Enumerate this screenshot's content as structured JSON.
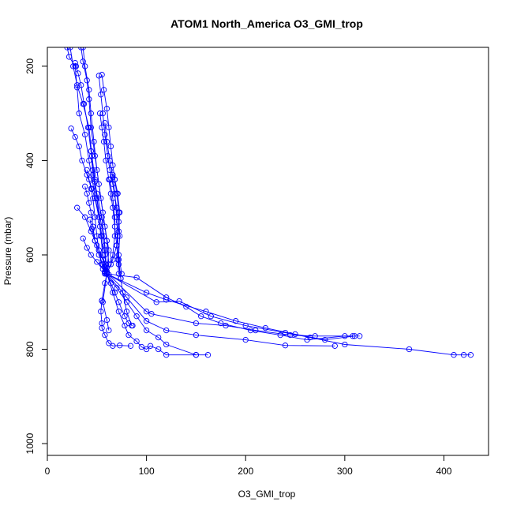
{
  "chart_data": {
    "type": "line",
    "title": "ATOM1 North_America O3_GMI_trop",
    "xlabel": "O3_GMI_trop",
    "ylabel": "Pressure (mbar)",
    "xlim": [
      0,
      445
    ],
    "ylim": [
      1025,
      160
    ],
    "y_reversed": true,
    "x_ticks": [
      "0",
      "100",
      "200",
      "300",
      "400"
    ],
    "y_ticks": [
      "200",
      "400",
      "600",
      "800",
      "1000"
    ],
    "x_tick_values": [
      0,
      100,
      200,
      300,
      400
    ],
    "y_tick_values": [
      200,
      400,
      600,
      800,
      1000
    ],
    "grid": false,
    "line_color": "#0000ff",
    "marker": "open-circle",
    "series": [
      {
        "points": [
          [
            20,
            160
          ],
          [
            22,
            180
          ],
          [
            28,
            200
          ],
          [
            30,
            245
          ],
          [
            32,
            300
          ],
          [
            38,
            345
          ],
          [
            42,
            400
          ],
          [
            46,
            450
          ],
          [
            52,
            520
          ],
          [
            54,
            560
          ],
          [
            56,
            600
          ],
          [
            58,
            635
          ],
          [
            60,
            640
          ]
        ]
      },
      {
        "points": [
          [
            23,
            160
          ],
          [
            26,
            200
          ],
          [
            30,
            240
          ],
          [
            36,
            280
          ],
          [
            42,
            330
          ],
          [
            45,
            390
          ],
          [
            48,
            440
          ],
          [
            50,
            480
          ],
          [
            53,
            540
          ],
          [
            56,
            600
          ],
          [
            58,
            635
          ]
        ]
      },
      {
        "points": [
          [
            34,
            160
          ],
          [
            36,
            190
          ],
          [
            40,
            230
          ],
          [
            42,
            270
          ],
          [
            44,
            330
          ],
          [
            48,
            390
          ],
          [
            52,
            450
          ],
          [
            56,
            510
          ],
          [
            60,
            570
          ],
          [
            62,
            620
          ],
          [
            60,
            640
          ]
        ]
      },
      {
        "points": [
          [
            36,
            160
          ],
          [
            38,
            200
          ],
          [
            42,
            250
          ],
          [
            44,
            300
          ],
          [
            47,
            360
          ],
          [
            50,
            420
          ],
          [
            54,
            480
          ],
          [
            58,
            540
          ],
          [
            62,
            590
          ],
          [
            60,
            638
          ]
        ]
      },
      {
        "points": [
          [
            28,
            193
          ],
          [
            29,
            200
          ],
          [
            31,
            215
          ],
          [
            34,
            240
          ],
          [
            37,
            280
          ],
          [
            41,
            330
          ],
          [
            44,
            380
          ],
          [
            46,
            430
          ],
          [
            50,
            480
          ],
          [
            54,
            530
          ],
          [
            58,
            580
          ],
          [
            60,
            640
          ]
        ]
      },
      {
        "points": [
          [
            52,
            220
          ],
          [
            54,
            260
          ],
          [
            56,
            300
          ],
          [
            58,
            345
          ],
          [
            61,
            390
          ],
          [
            63,
            420
          ],
          [
            66,
            450
          ],
          [
            70,
            500
          ],
          [
            72,
            530
          ],
          [
            70,
            580
          ],
          [
            72,
            620
          ],
          [
            74,
            650
          ]
        ]
      },
      {
        "points": [
          [
            55,
            218
          ],
          [
            57,
            250
          ],
          [
            60,
            290
          ],
          [
            62,
            330
          ],
          [
            64,
            370
          ],
          [
            66,
            410
          ],
          [
            68,
            440
          ],
          [
            70,
            470
          ],
          [
            72,
            510
          ],
          [
            73,
            560
          ],
          [
            72,
            600
          ],
          [
            75,
            640
          ]
        ]
      },
      {
        "points": [
          [
            53,
            300
          ],
          [
            55,
            330
          ],
          [
            57,
            360
          ],
          [
            59,
            400
          ],
          [
            62,
            440
          ],
          [
            64,
            470
          ],
          [
            66,
            500
          ],
          [
            68,
            540
          ],
          [
            70,
            580
          ],
          [
            71,
            610
          ],
          [
            72,
            640
          ]
        ]
      },
      {
        "points": [
          [
            58,
            320
          ],
          [
            60,
            360
          ],
          [
            63,
            400
          ],
          [
            66,
            435
          ],
          [
            68,
            470
          ],
          [
            70,
            520
          ],
          [
            71,
            560
          ],
          [
            72,
            610
          ],
          [
            74,
            650
          ],
          [
            76,
            680
          ],
          [
            80,
            720
          ],
          [
            85,
            750
          ]
        ]
      },
      {
        "points": [
          [
            24,
            332
          ],
          [
            28,
            350
          ],
          [
            32,
            370
          ],
          [
            35,
            400
          ],
          [
            40,
            430
          ],
          [
            45,
            460
          ],
          [
            48,
            480
          ],
          [
            52,
            520
          ],
          [
            55,
            560
          ],
          [
            58,
            600
          ],
          [
            60,
            640
          ]
        ]
      },
      {
        "points": [
          [
            44,
            380
          ],
          [
            46,
            420
          ],
          [
            48,
            445
          ],
          [
            50,
            470
          ],
          [
            55,
            520
          ],
          [
            57,
            560
          ],
          [
            58,
            590
          ],
          [
            59,
            620
          ],
          [
            60,
            640
          ]
        ]
      },
      {
        "points": [
          [
            40,
            420
          ],
          [
            42,
            440
          ],
          [
            44,
            460
          ],
          [
            46,
            480
          ],
          [
            48,
            520
          ],
          [
            50,
            560
          ],
          [
            52,
            590
          ],
          [
            55,
            620
          ],
          [
            58,
            640
          ]
        ]
      },
      {
        "points": [
          [
            38,
            455
          ],
          [
            40,
            470
          ],
          [
            42,
            490
          ],
          [
            44,
            510
          ],
          [
            46,
            540
          ],
          [
            48,
            570
          ],
          [
            52,
            600
          ],
          [
            56,
            620
          ],
          [
            58,
            638
          ]
        ]
      },
      {
        "points": [
          [
            30,
            500
          ],
          [
            38,
            520
          ],
          [
            44,
            550
          ],
          [
            50,
            580
          ],
          [
            56,
            610
          ],
          [
            60,
            640
          ]
        ]
      },
      {
        "points": [
          [
            36,
            565
          ],
          [
            40,
            585
          ],
          [
            44,
            600
          ],
          [
            50,
            615
          ],
          [
            56,
            630
          ],
          [
            60,
            640
          ]
        ]
      },
      {
        "points": [
          [
            43,
            525
          ],
          [
            45,
            545
          ],
          [
            48,
            570
          ],
          [
            52,
            590
          ],
          [
            56,
            610
          ],
          [
            60,
            635
          ]
        ]
      },
      {
        "points": [
          [
            56,
            600
          ],
          [
            58,
            625
          ],
          [
            60,
            640
          ],
          [
            90,
            648
          ],
          [
            120,
            690
          ],
          [
            140,
            710
          ],
          [
            155,
            730
          ],
          [
            175,
            745
          ],
          [
            205,
            760
          ],
          [
            235,
            770
          ],
          [
            262,
            780
          ],
          [
            300,
            772
          ],
          [
            315,
            772
          ]
        ]
      },
      {
        "points": [
          [
            60,
            640
          ],
          [
            100,
            680
          ],
          [
            120,
            695
          ],
          [
            160,
            720
          ],
          [
            190,
            740
          ],
          [
            220,
            755
          ],
          [
            250,
            768
          ],
          [
            280,
            780
          ],
          [
            310,
            772
          ]
        ]
      },
      {
        "points": [
          [
            60,
            640
          ],
          [
            110,
            700
          ],
          [
            133,
            698
          ],
          [
            165,
            730
          ],
          [
            200,
            750
          ],
          [
            240,
            765
          ],
          [
            265,
            775
          ],
          [
            300,
            790
          ],
          [
            365,
            800
          ],
          [
            410,
            812
          ],
          [
            420,
            812
          ],
          [
            427,
            812
          ]
        ]
      },
      {
        "points": [
          [
            62,
            642
          ],
          [
            100,
            720
          ],
          [
            105,
            725
          ],
          [
            150,
            745
          ],
          [
            180,
            750
          ],
          [
            210,
            760
          ],
          [
            245,
            770
          ],
          [
            270,
            772
          ],
          [
            308,
            772
          ]
        ]
      },
      {
        "points": [
          [
            60,
            640
          ],
          [
            80,
            690
          ],
          [
            100,
            740
          ],
          [
            120,
            760
          ],
          [
            150,
            770
          ],
          [
            200,
            780
          ],
          [
            240,
            792
          ],
          [
            290,
            793
          ]
        ]
      },
      {
        "points": [
          [
            58,
            638
          ],
          [
            70,
            670
          ],
          [
            80,
            700
          ],
          [
            90,
            730
          ],
          [
            100,
            760
          ],
          [
            112,
            775
          ],
          [
            120,
            790
          ],
          [
            150,
            812
          ],
          [
            162,
            812
          ]
        ]
      },
      {
        "points": [
          [
            60,
            640
          ],
          [
            66,
            680
          ],
          [
            72,
            720
          ],
          [
            78,
            750
          ],
          [
            82,
            770
          ],
          [
            90,
            783
          ],
          [
            95,
            795
          ],
          [
            100,
            800
          ],
          [
            104,
            793
          ],
          [
            112,
            800
          ],
          [
            120,
            812
          ],
          [
            150,
            812
          ]
        ]
      },
      {
        "points": [
          [
            55,
            697
          ],
          [
            58,
            660
          ],
          [
            60,
            640
          ]
        ]
      },
      {
        "points": [
          [
            55,
            697
          ],
          [
            54,
            720
          ],
          [
            55,
            745
          ],
          [
            55,
            755
          ],
          [
            58,
            770
          ],
          [
            62,
            787
          ],
          [
            66,
            793
          ],
          [
            73,
            792
          ],
          [
            84,
            793
          ]
        ]
      },
      {
        "points": [
          [
            60,
            640
          ],
          [
            56,
            700
          ],
          [
            60,
            738
          ],
          [
            62,
            760
          ]
        ]
      },
      {
        "points": [
          [
            60,
            640
          ],
          [
            64,
            660
          ],
          [
            68,
            680
          ],
          [
            72,
            700
          ],
          [
            78,
            730
          ],
          [
            82,
            745
          ],
          [
            86,
            750
          ]
        ]
      },
      {
        "points": [
          [
            60,
            640
          ],
          [
            66,
            610
          ],
          [
            70,
            580
          ],
          [
            72,
            550
          ],
          [
            73,
            510
          ],
          [
            71,
            470
          ],
          [
            68,
            440
          ],
          [
            66,
            430
          ]
        ]
      },
      {
        "points": [
          [
            60,
            640
          ],
          [
            64,
            620
          ],
          [
            66,
            600
          ],
          [
            68,
            560
          ],
          [
            68,
            520
          ],
          [
            66,
            480
          ],
          [
            63,
            440
          ]
        ]
      }
    ]
  }
}
